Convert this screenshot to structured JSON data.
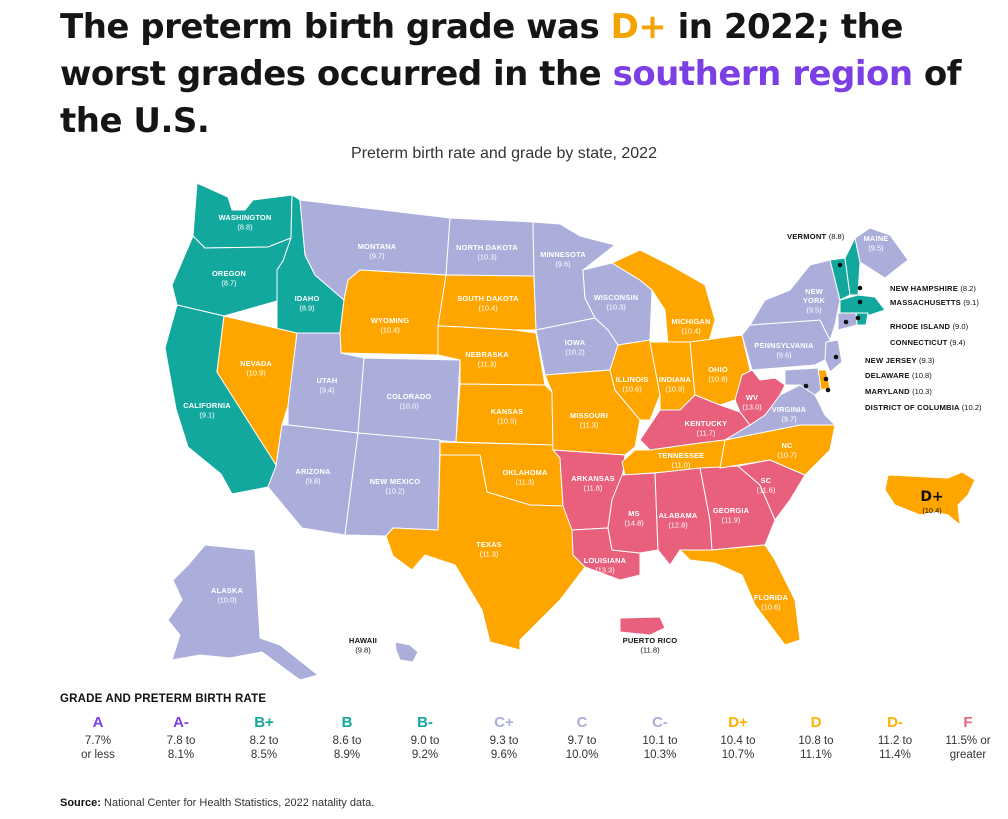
{
  "headline": {
    "part1": "The preterm birth grade was ",
    "grade": "D+",
    "part2": " in 2022; the worst grades occurred in the ",
    "region": "southern region",
    "part3": " of the U.S."
  },
  "subtitle": "Preterm birth rate and grade by state, 2022",
  "colors": {
    "B+": "#13A89E",
    "B": "#13A89E",
    "B-": "#13A89E",
    "C+": "#ABAEDB",
    "C": "#ABAEDB",
    "C-": "#ABAEDB",
    "D+": "#FFA500",
    "D": "#FFA500",
    "D-": "#FFA500",
    "F": "#E8607C"
  },
  "states": [
    {
      "id": "wa",
      "label": "WASHINGTON",
      "value": "(8.8)",
      "grade": "B"
    },
    {
      "id": "or",
      "label": "OREGON",
      "value": "(8.7)",
      "grade": "B"
    },
    {
      "id": "ca",
      "label": "CALIFORNIA",
      "value": "(9.1)",
      "grade": "B-"
    },
    {
      "id": "id",
      "label": "IDAHO",
      "value": "(8.9)",
      "grade": "B"
    },
    {
      "id": "nv",
      "label": "NEVADA",
      "value": "(10.9)",
      "grade": "D"
    },
    {
      "id": "mt",
      "label": "MONTANA",
      "value": "(9.7)",
      "grade": "C"
    },
    {
      "id": "wy",
      "label": "WYOMING",
      "value": "(10.4)",
      "grade": "D+"
    },
    {
      "id": "ut",
      "label": "UTAH",
      "value": "(9.4)",
      "grade": "C+"
    },
    {
      "id": "co",
      "label": "COLORADO",
      "value": "(10.0)",
      "grade": "C"
    },
    {
      "id": "az",
      "label": "ARIZONA",
      "value": "(9.8)",
      "grade": "C"
    },
    {
      "id": "nm",
      "label": "NEW MEXICO",
      "value": "(10.2)",
      "grade": "C-"
    },
    {
      "id": "nd",
      "label": "NORTH DAKOTA",
      "value": "(10.3)",
      "grade": "C-"
    },
    {
      "id": "sd",
      "label": "SOUTH DAKOTA",
      "value": "(10.4)",
      "grade": "D+"
    },
    {
      "id": "ne",
      "label": "NEBRASKA",
      "value": "(11.3)",
      "grade": "D-"
    },
    {
      "id": "ks",
      "label": "KANSAS",
      "value": "(10.5)",
      "grade": "D+"
    },
    {
      "id": "ok",
      "label": "OKLAHOMA",
      "value": "(11.3)",
      "grade": "D-"
    },
    {
      "id": "tx",
      "label": "TEXAS",
      "value": "(11.3)",
      "grade": "D-"
    },
    {
      "id": "mn",
      "label": "MINNESOTA",
      "value": "(9.6)",
      "grade": "C+"
    },
    {
      "id": "ia",
      "label": "IOWA",
      "value": "(10.2)",
      "grade": "C-"
    },
    {
      "id": "mo",
      "label": "MISSOURI",
      "value": "(11.3)",
      "grade": "D-"
    },
    {
      "id": "ar",
      "label": "ARKANSAS",
      "value": "(11.8)",
      "grade": "F"
    },
    {
      "id": "la",
      "label": "LOUISIANA",
      "value": "(13.3)",
      "grade": "F"
    },
    {
      "id": "wi",
      "label": "WISCONSIN",
      "value": "(10.3)",
      "grade": "C-"
    },
    {
      "id": "il",
      "label": "ILLINOIS",
      "value": "(10.6)",
      "grade": "D+"
    },
    {
      "id": "mi",
      "label": "MICHIGAN",
      "value": "(10.4)",
      "grade": "D+"
    },
    {
      "id": "in",
      "label": "INDIANA",
      "value": "(10.9)",
      "grade": "D"
    },
    {
      "id": "oh",
      "label": "OHIO",
      "value": "(10.8)",
      "grade": "D"
    },
    {
      "id": "ky",
      "label": "KENTUCKY",
      "value": "(11.7)",
      "grade": "F"
    },
    {
      "id": "tn",
      "label": "TENNESSEE",
      "value": "(11.0)",
      "grade": "D"
    },
    {
      "id": "ms",
      "label": "MS",
      "value": "(14.8)",
      "grade": "F"
    },
    {
      "id": "al",
      "label": "ALABAMA",
      "value": "(12.8)",
      "grade": "F"
    },
    {
      "id": "ga",
      "label": "GEORGIA",
      "value": "(11.9)",
      "grade": "F"
    },
    {
      "id": "fl",
      "label": "FLORIDA",
      "value": "(10.6)",
      "grade": "D+"
    },
    {
      "id": "sc",
      "label": "SC",
      "value": "(11.6)",
      "grade": "F"
    },
    {
      "id": "nc",
      "label": "NC",
      "value": "(10.7)",
      "grade": "D+"
    },
    {
      "id": "va",
      "label": "VIRGINIA",
      "value": "(9.7)",
      "grade": "C"
    },
    {
      "id": "wv",
      "label": "WV",
      "value": "(13.0)",
      "grade": "F"
    },
    {
      "id": "pa",
      "label": "PENNSYLVANIA",
      "value": "(9.6)",
      "grade": "C+"
    },
    {
      "id": "ny",
      "label": "NEW YORK",
      "value": "(9.5)",
      "grade": "C+"
    },
    {
      "id": "me",
      "label": "MAINE",
      "value": "(9.5)",
      "grade": "C+"
    },
    {
      "id": "ak",
      "label": "ALASKA",
      "value": "(10.0)",
      "grade": "C"
    },
    {
      "id": "hi",
      "label": "HAWAII",
      "value": "(9.8)",
      "grade": "C"
    },
    {
      "id": "pr",
      "label": "PUERTO RICO",
      "value": "(11.8)",
      "grade": "F"
    }
  ],
  "small_states": [
    {
      "id": "vt",
      "label": "VERMONT",
      "value": "(8.8)",
      "grade": "B"
    },
    {
      "id": "nh",
      "label": "NEW HAMPSHIRE",
      "value": "(8.2)",
      "grade": "B+"
    },
    {
      "id": "ma",
      "label": "MASSACHUSETTS",
      "value": "(9.1)",
      "grade": "B-"
    },
    {
      "id": "ri",
      "label": "RHODE ISLAND",
      "value": "(9.0)",
      "grade": "B-"
    },
    {
      "id": "ct",
      "label": "CONNECTICUT",
      "value": "(9.4)",
      "grade": "C+"
    },
    {
      "id": "nj",
      "label": "NEW JERSEY",
      "value": "(9.3)",
      "grade": "C+"
    },
    {
      "id": "de",
      "label": "DELAWARE",
      "value": "(10.8)",
      "grade": "D"
    },
    {
      "id": "md",
      "label": "MARYLAND",
      "value": "(10.3)",
      "grade": "C-"
    },
    {
      "id": "dc",
      "label": "DISTRICT OF COLUMBIA",
      "value": "(10.2)",
      "grade": "C-"
    }
  ],
  "us_overall": {
    "grade": "D+",
    "value": "(10.4)"
  },
  "legend": {
    "title": "GRADE AND PRETERM BIRTH RATE",
    "items": [
      {
        "grade": "A",
        "range": "7.7%\nor less",
        "color": "#7B3FE4"
      },
      {
        "grade": "A-",
        "range": "7.8 to\n8.1%",
        "color": "#7B3FE4"
      },
      {
        "grade": "B+",
        "range": "8.2 to\n8.5%",
        "color": "#13A89E"
      },
      {
        "grade": "B",
        "range": "8.6 to\n8.9%",
        "color": "#13A89E"
      },
      {
        "grade": "B-",
        "range": "9.0 to\n9.2%",
        "color": "#13A89E"
      },
      {
        "grade": "C+",
        "range": "9.3 to\n9.6%",
        "color": "#ABAEDB"
      },
      {
        "grade": "C",
        "range": "9.7 to\n10.0%",
        "color": "#ABAEDB"
      },
      {
        "grade": "C-",
        "range": "10.1 to\n10.3%",
        "color": "#ABAEDB"
      },
      {
        "grade": "D+",
        "range": "10.4 to\n10.7%",
        "color": "#FFB000"
      },
      {
        "grade": "D",
        "range": "10.8 to\n11.1%",
        "color": "#FFB000"
      },
      {
        "grade": "D-",
        "range": "11.2 to\n11.4%",
        "color": "#FFB000"
      },
      {
        "grade": "F",
        "range": "11.5% or\ngreater",
        "color": "#E8607C"
      }
    ]
  },
  "source": {
    "label": "Source:",
    "text": " National Center for Health Statistics, 2022 natality data."
  }
}
